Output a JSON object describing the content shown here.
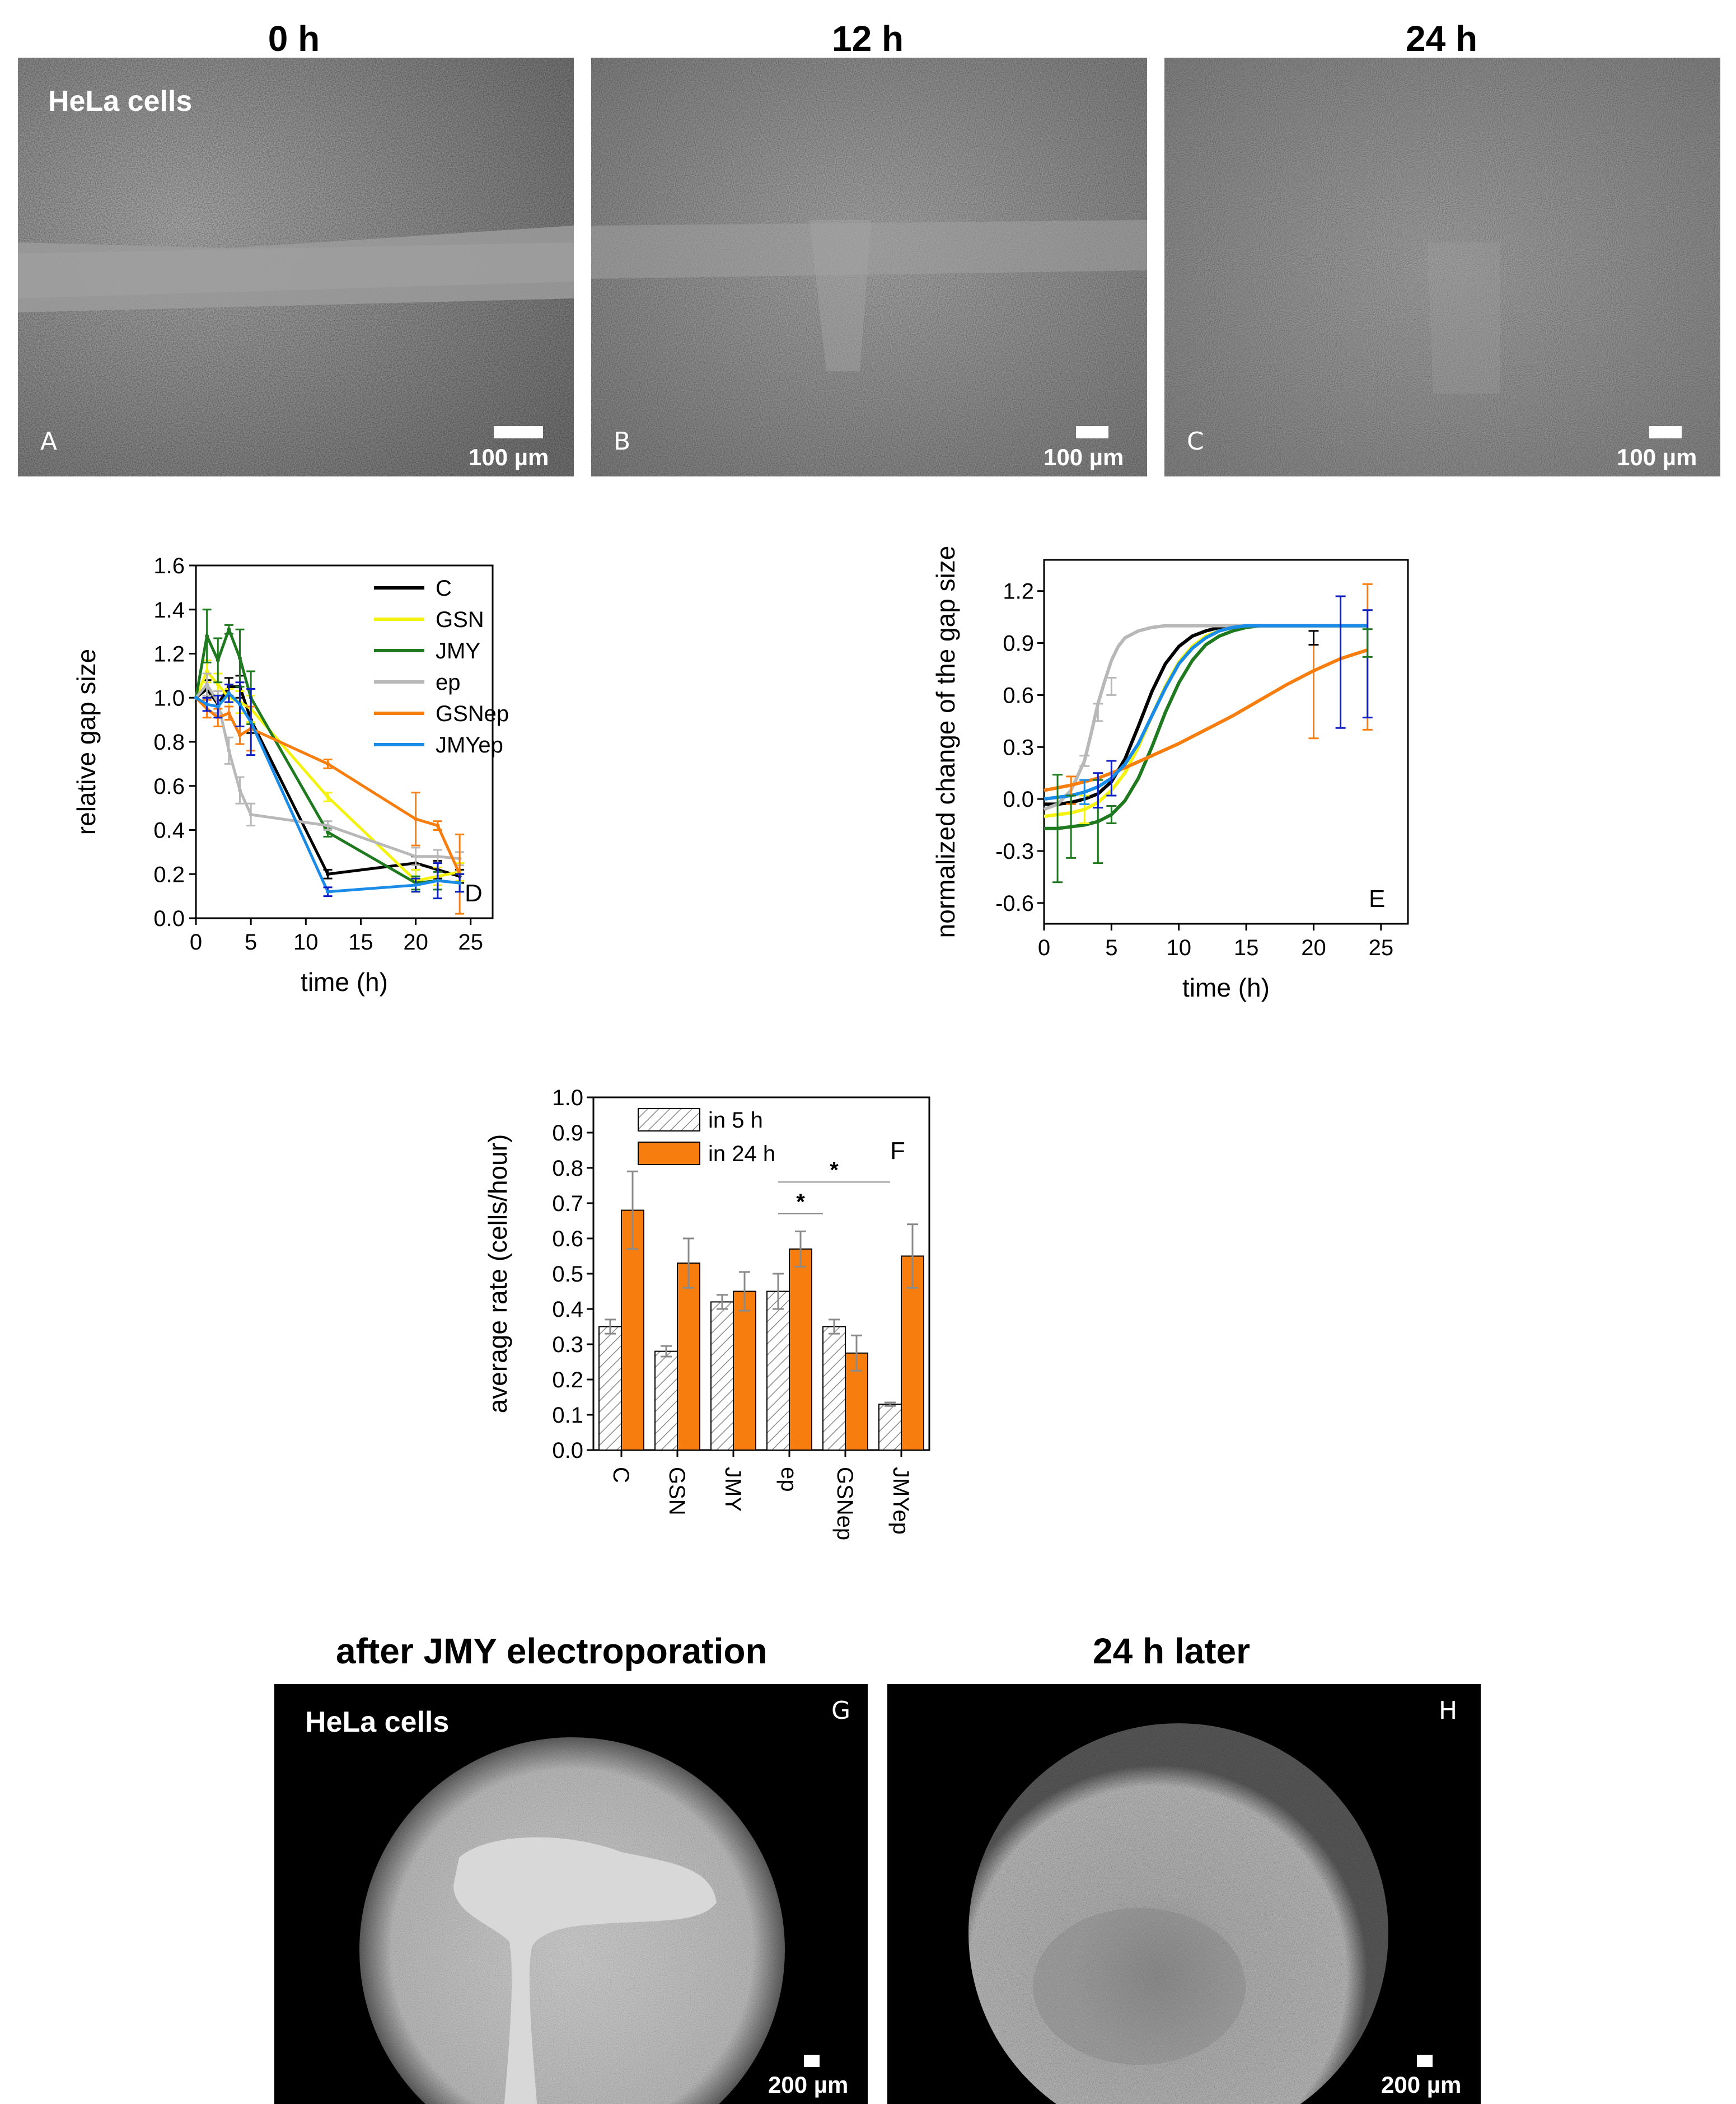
{
  "top_row": {
    "titles": [
      "0 h",
      "12 h",
      "24 h"
    ],
    "cell_label": "HeLa cells",
    "panel_letters": [
      "A",
      "B",
      "C"
    ],
    "scale_label": "100 µm"
  },
  "bottom_row": {
    "titles": [
      "after JMY electroporation",
      "24 h later"
    ],
    "cell_label": "HeLa cells",
    "panel_letters": [
      "G",
      "H"
    ],
    "scale_label": "200 µm"
  },
  "colors": {
    "C": "#000000",
    "GSN": "#f4f20f",
    "JMY": "#1f7a1f",
    "ep": "#b8b8b8",
    "GSNep": "#f77e0e",
    "JMYep": "#1a8ce8",
    "JMYep_err": "#0c1ec4",
    "bar_orange": "#f77e0e",
    "err_gray": "#8a8a8a"
  },
  "chart_data": [
    {
      "id": "D",
      "type": "line",
      "panel_letter": "D",
      "xlabel": "time (h)",
      "ylabel": "relative gap size",
      "xlim": [
        0,
        27
      ],
      "ylim": [
        0,
        1.6
      ],
      "xticks": [
        0,
        5,
        10,
        15,
        20,
        25
      ],
      "yticks": [
        0.0,
        0.2,
        0.4,
        0.6,
        0.8,
        1.0,
        1.2,
        1.4,
        1.6
      ],
      "legend_position": "top-right",
      "series": [
        {
          "name": "C",
          "x": [
            0,
            1,
            2,
            3,
            4,
            5,
            12,
            20,
            22,
            24
          ],
          "y": [
            1.0,
            1.04,
            0.97,
            1.05,
            1.05,
            0.9,
            0.2,
            0.25,
            0.22,
            0.19
          ],
          "err": [
            0,
            0.04,
            0.04,
            0.04,
            0.05,
            0.06,
            0.02,
            0.03,
            0.04,
            0.03
          ]
        },
        {
          "name": "GSN",
          "x": [
            0,
            1,
            2,
            3,
            4,
            5,
            12,
            20,
            22,
            24
          ],
          "y": [
            1.0,
            1.12,
            1.06,
            1.0,
            0.98,
            0.95,
            0.55,
            0.17,
            0.19,
            0.21
          ],
          "err": [
            0,
            0.05,
            0.05,
            0.04,
            0.05,
            0.06,
            0.02,
            0.05,
            0.04,
            0.04
          ]
        },
        {
          "name": "JMY",
          "x": [
            0,
            1,
            2,
            3,
            4,
            5,
            12,
            20,
            22,
            24
          ],
          "y": [
            1.0,
            1.28,
            1.17,
            1.31,
            1.18,
            1.0,
            0.39,
            0.16,
            0.17,
            0.16
          ],
          "err": [
            0,
            0.12,
            0.1,
            0.02,
            0.13,
            0.12,
            0.02,
            0.03,
            0.04,
            0.04
          ]
        },
        {
          "name": "ep",
          "x": [
            0,
            1,
            2,
            3,
            4,
            5,
            12,
            20,
            22,
            24
          ],
          "y": [
            1.0,
            1.06,
            0.98,
            0.76,
            0.58,
            0.47,
            0.42,
            0.28,
            0.28,
            0.27
          ],
          "err": [
            0,
            0.05,
            0.05,
            0.06,
            0.06,
            0.05,
            0.02,
            0.04,
            0.03,
            0.03
          ]
        },
        {
          "name": "GSNep",
          "x": [
            0,
            1,
            2,
            3,
            4,
            5,
            12,
            20,
            22,
            24
          ],
          "y": [
            1.0,
            0.95,
            0.91,
            0.93,
            0.83,
            0.86,
            0.7,
            0.45,
            0.42,
            0.2
          ],
          "err": [
            0,
            0.04,
            0.04,
            0.03,
            0.04,
            0.1,
            0.02,
            0.12,
            0.02,
            0.18
          ]
        },
        {
          "name": "JMYep",
          "x": [
            0,
            1,
            2,
            3,
            4,
            5,
            12,
            20,
            22,
            24
          ],
          "y": [
            1.0,
            0.97,
            0.96,
            1.02,
            0.97,
            0.89,
            0.12,
            0.15,
            0.17,
            0.16
          ],
          "err": [
            0,
            0.03,
            0.05,
            0.04,
            0.1,
            0.15,
            0.02,
            0.03,
            0.08,
            0.04
          ]
        }
      ]
    },
    {
      "id": "E",
      "type": "line",
      "panel_letter": "E",
      "xlabel": "time (h)",
      "ylabel": "normalized change of the gap size",
      "xlim": [
        0,
        27
      ],
      "ylim": [
        -0.72,
        1.38
      ],
      "xticks": [
        0,
        5,
        10,
        15,
        20,
        25
      ],
      "yticks": [
        -0.6,
        -0.3,
        0.0,
        0.3,
        0.6,
        0.9,
        1.2
      ],
      "series": [
        {
          "name": "C",
          "x": [
            0,
            1,
            2,
            3,
            4,
            5,
            6,
            7,
            8,
            9,
            10,
            11,
            12,
            13,
            14,
            15,
            16,
            18,
            20,
            22,
            24
          ],
          "y": [
            -0.03,
            -0.03,
            -0.02,
            0.0,
            0.03,
            0.1,
            0.23,
            0.42,
            0.62,
            0.78,
            0.88,
            0.94,
            0.97,
            0.99,
            0.995,
            1.0,
            1.0,
            1.0,
            1.0,
            1.0,
            1.0
          ]
        },
        {
          "name": "GSN",
          "x": [
            0,
            1,
            2,
            3,
            4,
            5,
            6,
            7,
            8,
            9,
            10,
            11,
            12,
            13,
            14,
            15,
            16,
            18,
            20,
            22,
            24
          ],
          "y": [
            -0.1,
            -0.09,
            -0.08,
            -0.06,
            -0.02,
            0.05,
            0.15,
            0.3,
            0.48,
            0.65,
            0.79,
            0.88,
            0.94,
            0.97,
            0.99,
            1.0,
            1.0,
            1.0,
            1.0,
            1.0,
            1.0
          ]
        },
        {
          "name": "JMY",
          "x": [
            0,
            1,
            2,
            3,
            4,
            5,
            6,
            7,
            8,
            9,
            10,
            11,
            12,
            13,
            14,
            15,
            16,
            18,
            20,
            22,
            24
          ],
          "y": [
            -0.17,
            -0.17,
            -0.16,
            -0.15,
            -0.13,
            -0.09,
            -0.01,
            0.12,
            0.3,
            0.5,
            0.67,
            0.8,
            0.89,
            0.94,
            0.97,
            0.99,
            1.0,
            1.0,
            1.0,
            1.0,
            1.0
          ]
        },
        {
          "name": "ep",
          "x": [
            0,
            1,
            2,
            3,
            3.5,
            4,
            4.5,
            5,
            5.5,
            6,
            7,
            8,
            9,
            10,
            12,
            15,
            20,
            24
          ],
          "y": [
            -0.06,
            -0.03,
            0.05,
            0.22,
            0.38,
            0.55,
            0.68,
            0.8,
            0.88,
            0.93,
            0.97,
            0.99,
            1.0,
            1.0,
            1.0,
            1.0,
            1.0,
            1.0
          ]
        },
        {
          "name": "GSNep",
          "x": [
            0,
            2,
            4,
            6,
            8,
            10,
            12,
            14,
            16,
            18,
            20,
            22,
            24
          ],
          "y": [
            0.05,
            0.08,
            0.12,
            0.18,
            0.25,
            0.32,
            0.4,
            0.48,
            0.57,
            0.66,
            0.74,
            0.81,
            0.86
          ]
        },
        {
          "name": "JMYep",
          "x": [
            0,
            1,
            2,
            3,
            4,
            5,
            6,
            7,
            8,
            9,
            10,
            11,
            12,
            13,
            14,
            15,
            16,
            18,
            20,
            22,
            24
          ],
          "y": [
            0.0,
            0.01,
            0.02,
            0.04,
            0.07,
            0.12,
            0.2,
            0.32,
            0.48,
            0.64,
            0.78,
            0.87,
            0.93,
            0.97,
            0.99,
            1.0,
            1.0,
            1.0,
            1.0,
            1.0,
            1.0
          ]
        }
      ],
      "errorbars": [
        {
          "series": "JMY",
          "x": 1,
          "y": -0.17,
          "err": 0.31
        },
        {
          "series": "GSNep",
          "x": 2,
          "y": 0.05,
          "err": 0.08
        },
        {
          "series": "JMY",
          "x": 2,
          "y": -0.16,
          "err": 0.18
        },
        {
          "series": "GSN",
          "x": 3,
          "y": -0.06,
          "err": 0.08
        },
        {
          "series": "JMYep",
          "x": 3,
          "y": 0.04,
          "err": 0.07
        },
        {
          "series": "JMY",
          "x": 4,
          "y": -0.13,
          "err": 0.24
        },
        {
          "series": "JMYep_err",
          "x": 4,
          "y": 0.05,
          "err": 0.1
        },
        {
          "series": "ep",
          "x": 4,
          "y": 0.5,
          "err": 0.05
        },
        {
          "series": "ep",
          "x": 5,
          "y": 0.65,
          "err": 0.05
        },
        {
          "series": "JMY",
          "x": 5,
          "y": -0.09,
          "err": 0.05
        },
        {
          "series": "JMYep_err",
          "x": 5,
          "y": 0.12,
          "err": 0.1
        },
        {
          "series": "ep",
          "x": 3,
          "y": 0.22,
          "err": 0.03
        },
        {
          "series": "GSNep",
          "x": 20,
          "y": 0.62,
          "err": 0.27
        },
        {
          "series": "C",
          "x": 20,
          "y": 0.93,
          "err": 0.04
        },
        {
          "series": "JMYep_err",
          "x": 22,
          "y": 0.79,
          "err": 0.38
        },
        {
          "series": "GSNep",
          "x": 24,
          "y": 0.82,
          "err": 0.42
        },
        {
          "series": "JMYep_err",
          "x": 24,
          "y": 0.78,
          "err": 0.31
        },
        {
          "series": "JMY",
          "x": 24,
          "y": 0.9,
          "err": 0.08
        }
      ]
    },
    {
      "id": "F",
      "type": "bar",
      "panel_letter": "F",
      "ylabel": "average rate (cells/hour)",
      "ylim": [
        0,
        1.0
      ],
      "yticks": [
        0.0,
        0.1,
        0.2,
        0.3,
        0.4,
        0.5,
        0.6,
        0.7,
        0.8,
        0.9,
        1.0
      ],
      "categories": [
        "C",
        "GSN",
        "JMY",
        "ep",
        "GSNep",
        "JMYep"
      ],
      "legend_position": "top-left",
      "series": [
        {
          "name": "in 5 h",
          "values": [
            0.35,
            0.28,
            0.42,
            0.45,
            0.35,
            0.13
          ],
          "err": [
            0.02,
            0.015,
            0.02,
            0.05,
            0.02,
            0.005
          ]
        },
        {
          "name": "in 24 h",
          "values": [
            0.68,
            0.53,
            0.45,
            0.57,
            0.275,
            0.55
          ],
          "err": [
            0.11,
            0.07,
            0.055,
            0.05,
            0.05,
            0.09
          ]
        }
      ],
      "annotations": [
        {
          "text": "*",
          "from": "ep",
          "to": "JMYep"
        },
        {
          "text": "*",
          "from": "ep",
          "to": "GSNep"
        }
      ]
    }
  ]
}
